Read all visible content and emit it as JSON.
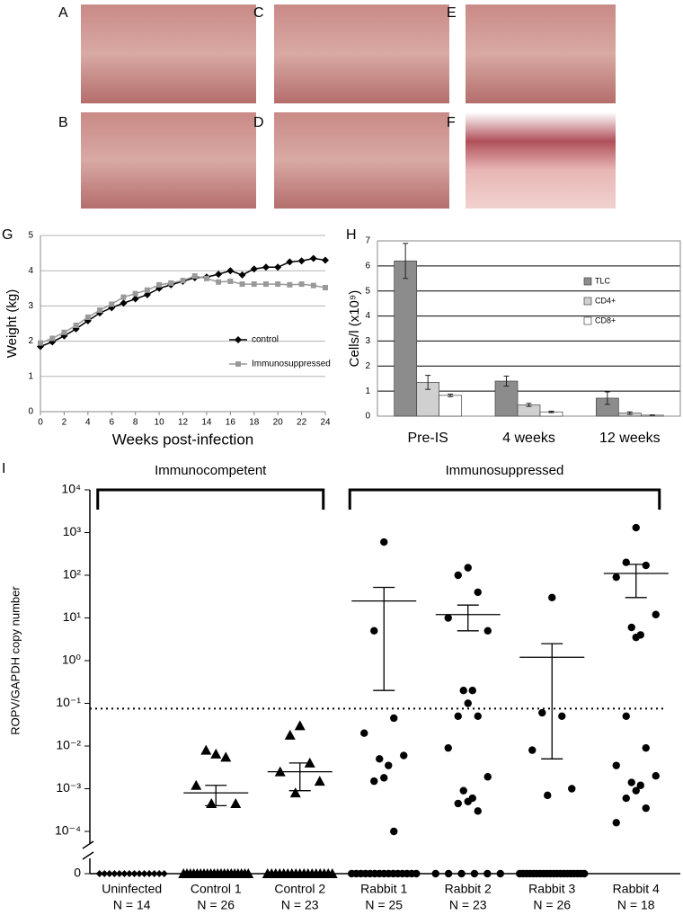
{
  "photo_labels": [
    "A",
    "B",
    "C",
    "D",
    "E",
    "F"
  ],
  "chart_data": [
    {
      "type": "line",
      "panel_label": "G",
      "ylabel": "Weight (kg)",
      "xlabel": "Weeks post-infection",
      "x": [
        0,
        1,
        2,
        3,
        4,
        5,
        6,
        7,
        8,
        9,
        10,
        11,
        12,
        13,
        14,
        15,
        16,
        17,
        18,
        19,
        20,
        21,
        22,
        23,
        24
      ],
      "series": [
        {
          "name": "control",
          "color": "#000000",
          "marker": "diamond",
          "values": [
            1.85,
            1.98,
            2.15,
            2.35,
            2.58,
            2.8,
            2.95,
            3.08,
            3.2,
            3.32,
            3.5,
            3.6,
            3.7,
            3.8,
            3.82,
            3.9,
            4.0,
            3.88,
            4.05,
            4.1,
            4.1,
            4.25,
            4.28,
            4.35,
            4.3
          ]
        },
        {
          "name": "Immunosuppressed",
          "color": "#999999",
          "marker": "square",
          "values": [
            1.95,
            2.08,
            2.25,
            2.45,
            2.68,
            2.88,
            3.05,
            3.25,
            3.35,
            3.45,
            3.6,
            3.65,
            3.72,
            3.85,
            3.78,
            3.68,
            3.7,
            3.62,
            3.62,
            3.62,
            3.62,
            3.6,
            3.62,
            3.58,
            3.52
          ]
        }
      ],
      "xlim": [
        0,
        24
      ],
      "xticks": [
        0,
        2,
        4,
        6,
        8,
        10,
        12,
        14,
        16,
        18,
        20,
        22,
        24
      ],
      "ylim": [
        0,
        5
      ],
      "yticks": [
        0,
        1,
        2,
        3,
        4,
        5
      ],
      "grid": true,
      "legend": "right"
    },
    {
      "type": "bar",
      "panel_label": "H",
      "ylabel": "Cells/l (x10⁹)",
      "categories": [
        "Pre-IS",
        "4 weeks",
        "12 weeks"
      ],
      "series": [
        {
          "name": "TLC",
          "color": "#8c8c8c",
          "values": [
            6.2,
            1.4,
            0.72
          ],
          "errors": [
            0.7,
            0.2,
            0.25
          ]
        },
        {
          "name": "CD4+",
          "color": "#d0d0d0",
          "values": [
            1.35,
            0.45,
            0.12
          ],
          "errors": [
            0.28,
            0.06,
            0.05
          ]
        },
        {
          "name": "CD8+",
          "color": "#ffffff",
          "values": [
            0.83,
            0.17,
            0.04
          ],
          "errors": [
            0.05,
            0.03,
            0.01
          ]
        }
      ],
      "ylim": [
        0,
        7
      ],
      "yticks": [
        0,
        1,
        2,
        3,
        4,
        5,
        6,
        7
      ],
      "grid": true,
      "legend": "upper right"
    },
    {
      "type": "scatter",
      "panel_label": "I",
      "ylabel": "ROPV/GAPDH copy number",
      "log_scale": true,
      "group_labels": [
        "Immunocompetent",
        "Immunosuppressed"
      ],
      "ylim": [
        0.0001,
        10000
      ],
      "yticks": [
        0,
        {
          "value": 0.0001,
          "label": "10⁻⁴"
        },
        {
          "value": 0.001,
          "label": "10⁻³"
        },
        {
          "value": 0.01,
          "label": "10⁻²"
        },
        {
          "value": 0.1,
          "label": "10⁻¹"
        },
        {
          "value": 1,
          "label": "10⁰"
        },
        {
          "value": 10,
          "label": "10¹"
        },
        {
          "value": 100,
          "label": "10²"
        },
        {
          "value": 1000,
          "label": "10³"
        },
        {
          "value": 10000,
          "label": "10⁴"
        }
      ],
      "threshold": 0.075,
      "groups": [
        {
          "name": "Uninfected",
          "n_label": "N = 14",
          "marker": "diamond",
          "values": [
            0,
            0,
            0,
            0,
            0,
            0,
            0,
            0,
            0,
            0,
            0,
            0,
            0,
            0
          ]
        },
        {
          "name": "Control 1",
          "n_label": "N = 26",
          "marker": "triangle",
          "values": [
            0.0065,
            0.008,
            0.0055,
            0.0012,
            0.00045,
            0.00045,
            0,
            0,
            0,
            0,
            0,
            0,
            0,
            0,
            0,
            0,
            0,
            0,
            0,
            0,
            0,
            0,
            0,
            0,
            0,
            0
          ],
          "mean": 0.0008,
          "upper": 0.0012,
          "lower": 0.0004
        },
        {
          "name": "Control 2",
          "n_label": "N = 23",
          "marker": "triangle",
          "values": [
            0.03,
            0.018,
            0.004,
            0.0025,
            0.0015,
            0.0008,
            0,
            0,
            0,
            0,
            0,
            0,
            0,
            0,
            0,
            0,
            0,
            0,
            0,
            0,
            0,
            0,
            0
          ],
          "mean": 0.0025,
          "upper": 0.004,
          "lower": 0.0009
        },
        {
          "name": "Rabbit 1",
          "n_label": "N = 25",
          "marker": "circle",
          "values": [
            600,
            5,
            0.045,
            0.02,
            0.006,
            0.005,
            0.0035,
            0.0018,
            0.0015,
            0.0001,
            0,
            0,
            0,
            0,
            0,
            0,
            0,
            0,
            0,
            0,
            0,
            0,
            0,
            0,
            0
          ],
          "mean": 25,
          "upper": 52,
          "lower": 0.2
        },
        {
          "name": "Rabbit 2",
          "n_label": "N = 23",
          "marker": "circle",
          "values": [
            150,
            100,
            40,
            10,
            5,
            0.2,
            0.2,
            0.1,
            0.05,
            0.05,
            0.009,
            0.0019,
            0.0009,
            0.0006,
            0.0005,
            0.00045,
            0.0003,
            0,
            0,
            0,
            0,
            0,
            0
          ],
          "mean": 12,
          "upper": 20,
          "lower": 5
        },
        {
          "name": "Rabbit 3",
          "n_label": "N = 26",
          "marker": "circle",
          "values": [
            30,
            0.06,
            0.05,
            0.008,
            0.001,
            0.0007,
            0,
            0,
            0,
            0,
            0,
            0,
            0,
            0,
            0,
            0,
            0,
            0,
            0,
            0,
            0,
            0,
            0,
            0,
            0,
            0
          ],
          "mean": 1.2,
          "upper": 2.5,
          "lower": 0.005
        },
        {
          "name": "Rabbit 4",
          "n_label": "N = 18",
          "marker": "circle",
          "values": [
            1300,
            200,
            170,
            90,
            12,
            6,
            4,
            3.5,
            0.05,
            0.009,
            0.0035,
            0.002,
            0.0014,
            0.0012,
            0.0009,
            0.0006,
            0.00035,
            0.00016
          ],
          "mean": 110,
          "upper": 180,
          "lower": 30
        }
      ]
    }
  ]
}
